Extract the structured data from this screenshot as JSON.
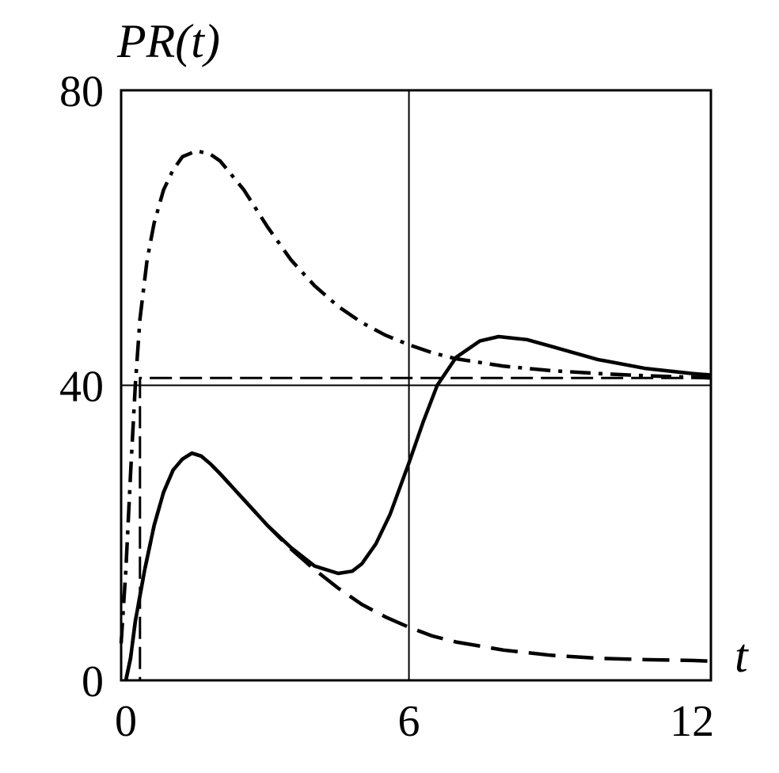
{
  "chart_data": {
    "type": "line",
    "title": "",
    "xlabel": "t",
    "ylabel": "PR(t)",
    "xlim": [
      -0.1,
      12.4
    ],
    "ylim": [
      0,
      80
    ],
    "xticks": [
      {
        "value": 0,
        "label": "0"
      },
      {
        "value": 6,
        "label": "6"
      },
      {
        "value": 12,
        "label": "12"
      }
    ],
    "yticks": [
      {
        "value": 0,
        "label": "0"
      },
      {
        "value": 40,
        "label": "40"
      },
      {
        "value": 80,
        "label": "80"
      }
    ],
    "grid": false,
    "reference_lines": [
      {
        "orientation": "vertical",
        "value": 6,
        "style": "solid"
      },
      {
        "orientation": "horizontal",
        "value": 40,
        "style": "solid"
      }
    ],
    "series": [
      {
        "style": "solid",
        "points": [
          [
            0.0,
            0.0
          ],
          [
            0.1,
            3.0
          ],
          [
            0.2,
            8.0
          ],
          [
            0.4,
            15.0
          ],
          [
            0.6,
            21.0
          ],
          [
            0.8,
            25.5
          ],
          [
            1.0,
            28.5
          ],
          [
            1.2,
            30.0
          ],
          [
            1.4,
            30.8
          ],
          [
            1.6,
            30.4
          ],
          [
            1.8,
            29.3
          ],
          [
            2.0,
            28.0
          ],
          [
            2.5,
            24.5
          ],
          [
            3.0,
            21.0
          ],
          [
            3.5,
            18.0
          ],
          [
            4.0,
            15.5
          ],
          [
            4.5,
            14.5
          ],
          [
            4.8,
            14.8
          ],
          [
            5.0,
            15.8
          ],
          [
            5.3,
            18.5
          ],
          [
            5.6,
            22.5
          ],
          [
            6.0,
            29.5
          ],
          [
            6.3,
            35.0
          ],
          [
            6.6,
            40.0
          ],
          [
            7.0,
            43.8
          ],
          [
            7.5,
            46.0
          ],
          [
            7.9,
            46.6
          ],
          [
            8.5,
            46.2
          ],
          [
            9.0,
            45.3
          ],
          [
            10.0,
            43.5
          ],
          [
            11.0,
            42.3
          ],
          [
            12.0,
            41.6
          ],
          [
            12.4,
            41.4
          ]
        ]
      },
      {
        "style": "dashed",
        "points": [
          [
            0.0,
            0.0
          ],
          [
            0.1,
            3.0
          ],
          [
            0.2,
            8.0
          ],
          [
            0.4,
            15.0
          ],
          [
            0.6,
            21.0
          ],
          [
            0.8,
            25.5
          ],
          [
            1.0,
            28.5
          ],
          [
            1.2,
            30.0
          ],
          [
            1.4,
            30.8
          ],
          [
            1.6,
            30.4
          ],
          [
            1.8,
            29.3
          ],
          [
            2.0,
            28.0
          ],
          [
            2.5,
            24.5
          ],
          [
            3.0,
            21.0
          ],
          [
            3.5,
            17.8
          ],
          [
            4.0,
            15.0
          ],
          [
            4.5,
            12.5
          ],
          [
            5.0,
            10.3
          ],
          [
            5.5,
            8.6
          ],
          [
            6.0,
            7.2
          ],
          [
            6.5,
            6.0
          ],
          [
            7.0,
            5.2
          ],
          [
            8.0,
            4.1
          ],
          [
            9.0,
            3.4
          ],
          [
            10.0,
            3.0
          ],
          [
            11.0,
            2.8
          ],
          [
            12.0,
            2.7
          ],
          [
            12.4,
            2.6
          ]
        ]
      },
      {
        "style": "dash-dot",
        "points": [
          [
            -0.1,
            5.0
          ],
          [
            0.0,
            15.0
          ],
          [
            0.1,
            28.0
          ],
          [
            0.2,
            40.0
          ],
          [
            0.3,
            49.0
          ],
          [
            0.45,
            57.0
          ],
          [
            0.6,
            62.0
          ],
          [
            0.8,
            66.5
          ],
          [
            1.0,
            69.2
          ],
          [
            1.2,
            71.0
          ],
          [
            1.5,
            71.8
          ],
          [
            1.8,
            71.3
          ],
          [
            2.0,
            70.4
          ],
          [
            2.5,
            66.5
          ],
          [
            3.0,
            61.5
          ],
          [
            3.5,
            57.0
          ],
          [
            4.0,
            53.5
          ],
          [
            4.5,
            50.7
          ],
          [
            5.0,
            48.5
          ],
          [
            5.5,
            46.8
          ],
          [
            6.0,
            45.5
          ],
          [
            6.5,
            44.4
          ],
          [
            7.0,
            43.6
          ],
          [
            8.0,
            42.6
          ],
          [
            9.0,
            42.0
          ],
          [
            10.0,
            41.6
          ],
          [
            11.0,
            41.3
          ],
          [
            12.0,
            41.1
          ],
          [
            12.4,
            41.0
          ]
        ]
      },
      {
        "style": "dashed-thin",
        "points": [
          [
            -0.1,
            0.0
          ],
          [
            0.3,
            0.0
          ],
          [
            0.3,
            41.0
          ],
          [
            12.4,
            41.0
          ]
        ]
      }
    ]
  }
}
